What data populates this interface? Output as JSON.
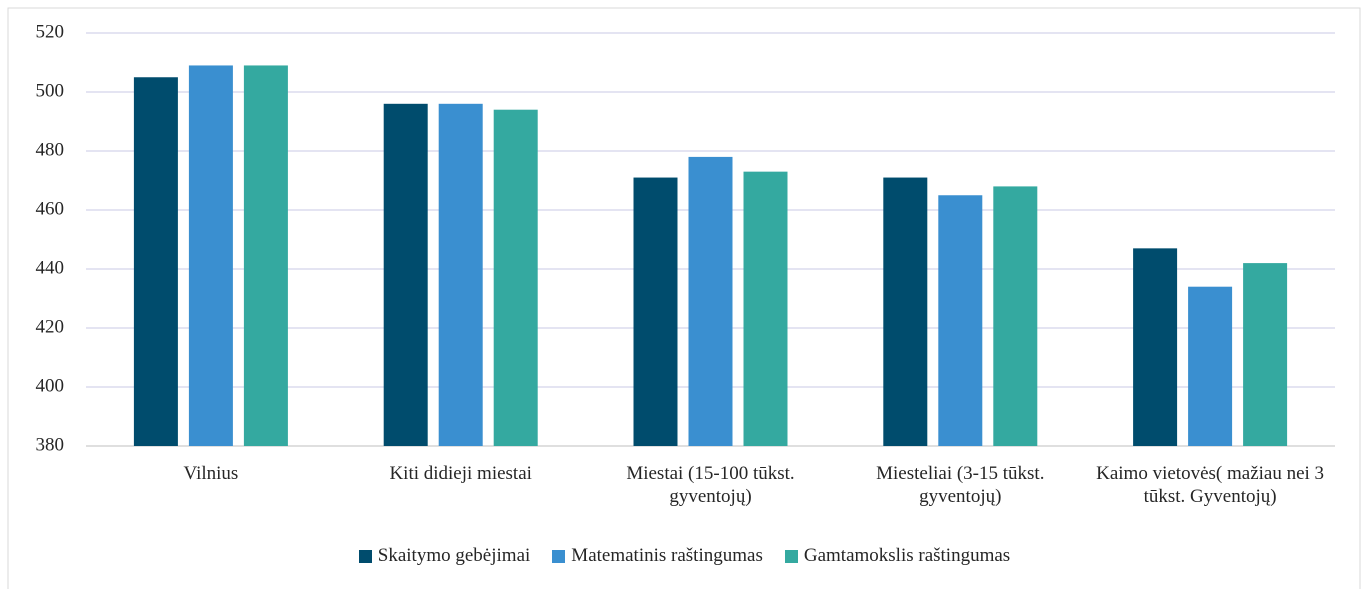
{
  "chart_data": {
    "type": "bar",
    "categories": [
      "Vilnius",
      "Kiti didieji miestai",
      "Miestai (15-100 tūkst. gyventojų)",
      "Miesteliai (3-15 tūkst. gyventojų)",
      "Kaimo vietovės( mažiau nei 3 tūkst. Gyventojų)"
    ],
    "series": [
      {
        "name": "Skaitymo gebėjimai",
        "color": "#004c6d",
        "values": [
          505,
          496,
          471,
          471,
          447
        ]
      },
      {
        "name": "Matematinis raštingumas",
        "color": "#3a8fd0",
        "values": [
          509,
          496,
          478,
          465,
          434
        ]
      },
      {
        "name": "Gamtamokslis raštingumas",
        "color": "#34a9a0",
        "values": [
          509,
          494,
          473,
          468,
          442
        ]
      }
    ],
    "ylim": [
      380,
      520
    ],
    "yticks": [
      380,
      400,
      420,
      440,
      460,
      480,
      500,
      520
    ],
    "grid": true,
    "legend": "bottom"
  }
}
